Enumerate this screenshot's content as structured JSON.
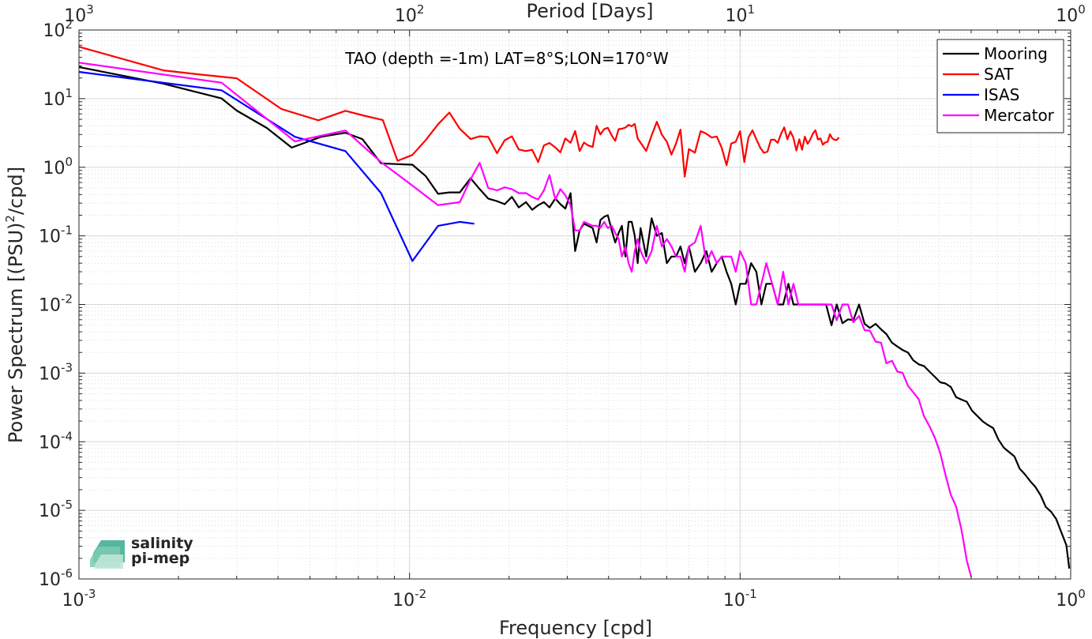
{
  "chart_data": {
    "type": "line",
    "title": "TAO (depth =-1m) LAT=8°S;LON=170°W",
    "xlabel": "Frequency [cpd]",
    "ylabel_main": "Power Spectrum [(PSU)",
    "ylabel_sup": "2",
    "ylabel_tail": "/cpd]",
    "top_xlabel": "Period [Days]",
    "xscale": "log",
    "yscale": "log",
    "xlim": [
      0.001,
      1
    ],
    "ylim": [
      1e-06,
      100
    ],
    "grid": true,
    "legend_position": "top-right",
    "x_ticks": [
      {
        "value": 0.001,
        "base": "10",
        "exp": "-3"
      },
      {
        "value": 0.01,
        "base": "10",
        "exp": "-2"
      },
      {
        "value": 0.1,
        "base": "10",
        "exp": "-1"
      },
      {
        "value": 1,
        "base": "10",
        "exp": "0"
      }
    ],
    "top_ticks": [
      {
        "value": 1000,
        "base": "10",
        "exp": "3"
      },
      {
        "value": 100,
        "base": "10",
        "exp": "2"
      },
      {
        "value": 10,
        "base": "10",
        "exp": "1"
      },
      {
        "value": 1,
        "base": "10",
        "exp": "0"
      }
    ],
    "y_ticks": [
      {
        "value": 1e-06,
        "base": "10",
        "exp": "-6"
      },
      {
        "value": 1e-05,
        "base": "10",
        "exp": "-5"
      },
      {
        "value": 0.0001,
        "base": "10",
        "exp": "-4"
      },
      {
        "value": 0.001,
        "base": "10",
        "exp": "-3"
      },
      {
        "value": 0.01,
        "base": "10",
        "exp": "-2"
      },
      {
        "value": 0.1,
        "base": "10",
        "exp": "-1"
      },
      {
        "value": 1,
        "base": "10",
        "exp": "0"
      },
      {
        "value": 10,
        "base": "10",
        "exp": "1"
      },
      {
        "value": 100,
        "base": "10",
        "exp": "2"
      }
    ],
    "series": [
      {
        "name": "Mooring",
        "color": "#000000",
        "x": [
          0.001,
          0.0018,
          0.0027,
          0.003,
          0.0037,
          0.0044,
          0.0054,
          0.0064,
          0.0072,
          0.0082,
          0.0092,
          0.0102,
          0.0112,
          0.0122,
          0.0132,
          0.0142,
          0.0153,
          0.0163,
          0.0173,
          0.0184,
          0.0194,
          0.0204,
          0.0214,
          0.0225,
          0.0235,
          0.0245,
          0.0255,
          0.0265,
          0.0276,
          0.0286,
          0.0296,
          0.0307,
          0.0317,
          0.0327,
          0.0337,
          0.0347,
          0.0358,
          0.0368,
          0.0378,
          0.0388,
          0.0398,
          0.0409,
          0.0419,
          0.0429,
          0.0439,
          0.045,
          0.046,
          0.047,
          0.048,
          0.049,
          0.05,
          0.052,
          0.054,
          0.056,
          0.058,
          0.06,
          0.062,
          0.064,
          0.066,
          0.068,
          0.07,
          0.073,
          0.076,
          0.079,
          0.082,
          0.085,
          0.088,
          0.091,
          0.094,
          0.097,
          0.1,
          0.104,
          0.108,
          0.112,
          0.116,
          0.12,
          0.125,
          0.13,
          0.135,
          0.14,
          0.145,
          0.15,
          0.156,
          0.162,
          0.168,
          0.175,
          0.182,
          0.189,
          0.196,
          0.204,
          0.212,
          0.22,
          0.229,
          0.238,
          0.247,
          0.257,
          0.267,
          0.277,
          0.288,
          0.299,
          0.31,
          0.322,
          0.334,
          0.347,
          0.36,
          0.374,
          0.388,
          0.403,
          0.418,
          0.434,
          0.45,
          0.467,
          0.485,
          0.503,
          0.522,
          0.542,
          0.562,
          0.583,
          0.605,
          0.628,
          0.652,
          0.676,
          0.701,
          0.727,
          0.754,
          0.782,
          0.811,
          0.841,
          0.872,
          0.904,
          0.937,
          0.97,
          0.99
        ],
        "y": [
          28.88,
          16.53,
          10.08,
          6.69,
          3.74,
          1.93,
          2.78,
          3.18,
          2.57,
          1.14,
          1.11,
          1.09,
          0.74,
          0.41,
          0.43,
          0.43,
          0.69,
          0.48,
          0.35,
          0.32,
          0.29,
          0.37,
          0.26,
          0.31,
          0.24,
          0.28,
          0.31,
          0.26,
          0.35,
          0.29,
          0.25,
          0.42,
          0.06,
          0.12,
          0.15,
          0.14,
          0.13,
          0.08,
          0.17,
          0.19,
          0.2,
          0.12,
          0.08,
          0.11,
          0.14,
          0.05,
          0.16,
          0.16,
          0.1,
          0.04,
          0.13,
          0.05,
          0.18,
          0.1,
          0.11,
          0.04,
          0.05,
          0.05,
          0.07,
          0.04,
          0.07,
          0.03,
          0.04,
          0.06,
          0.03,
          0.04,
          0.05,
          0.03,
          0.02,
          0.01,
          0.02,
          0.02,
          0.04,
          0.03,
          0.01,
          0.02,
          0.02,
          0.01,
          0.01,
          0.02,
          0.01,
          0.01,
          0.01,
          0.01,
          0.01,
          0.01,
          0.01,
          0.00497,
          0.01,
          0.00533,
          0.00607,
          0.00591,
          0.01,
          0.00523,
          0.00456,
          0.00522,
          0.00434,
          0.0037,
          0.00277,
          0.00244,
          0.00217,
          0.00199,
          0.00154,
          0.00134,
          0.00127,
          0.00105,
          0.000885,
          0.000734,
          0.000707,
          0.000629,
          0.000447,
          0.000411,
          0.000383,
          0.000283,
          0.000237,
          0.000198,
          0.000175,
          0.000158,
          0.000107,
          8.16e-05,
          7.03e-05,
          6.1e-05,
          4.05e-05,
          3.35e-05,
          2.67e-05,
          2.19e-05,
          1.66e-05,
          1.12e-05,
          9.57e-06,
          7.5e-06,
          4.78e-06,
          3.12e-06,
          1.42e-06
        ]
      },
      {
        "name": "SAT",
        "color": "#ff0000",
        "x": [
          0.001,
          0.0018,
          0.0023,
          0.003,
          0.0041,
          0.0053,
          0.0064,
          0.0073,
          0.0083,
          0.0092,
          0.0102,
          0.0112,
          0.0122,
          0.0132,
          0.0142,
          0.0153,
          0.0163,
          0.0173,
          0.0184,
          0.0194,
          0.0204,
          0.0214,
          0.0225,
          0.0235,
          0.0245,
          0.0255,
          0.0265,
          0.0276,
          0.0286,
          0.0296,
          0.0307,
          0.0317,
          0.0327,
          0.0337,
          0.0347,
          0.0358,
          0.0368,
          0.0378,
          0.0388,
          0.0398,
          0.0409,
          0.0419,
          0.0429,
          0.0439,
          0.045,
          0.046,
          0.047,
          0.048,
          0.049,
          0.05,
          0.052,
          0.054,
          0.056,
          0.058,
          0.06,
          0.062,
          0.064,
          0.066,
          0.068,
          0.07,
          0.073,
          0.076,
          0.079,
          0.082,
          0.085,
          0.088,
          0.091,
          0.094,
          0.097,
          0.1,
          0.103,
          0.106,
          0.109,
          0.112,
          0.115,
          0.118,
          0.121,
          0.124,
          0.127,
          0.13,
          0.133,
          0.136,
          0.139,
          0.142,
          0.145,
          0.148,
          0.151,
          0.154,
          0.157,
          0.16,
          0.163,
          0.166,
          0.169,
          0.172,
          0.175,
          0.178,
          0.181,
          0.184,
          0.187,
          0.19,
          0.193,
          0.196,
          0.199
        ],
        "y": [
          57.05,
          25.8,
          22.63,
          19.8,
          7.05,
          4.84,
          6.65,
          5.64,
          4.89,
          1.24,
          1.51,
          2.5,
          4.23,
          6.27,
          3.63,
          2.57,
          2.82,
          2.77,
          1.6,
          2.47,
          2.82,
          1.82,
          1.72,
          1.8,
          1.19,
          2.08,
          2.26,
          1.94,
          1.65,
          2.63,
          2.27,
          3.37,
          1.72,
          2.29,
          2.08,
          1.98,
          4.03,
          3.0,
          3.6,
          3.76,
          2.9,
          2.43,
          3.59,
          3.64,
          3.79,
          4.15,
          3.96,
          4.28,
          2.62,
          2.27,
          1.73,
          2.91,
          4.6,
          2.98,
          2.36,
          1.53,
          2.22,
          3.54,
          0.73,
          1.84,
          1.63,
          3.36,
          3.08,
          2.71,
          2.81,
          1.91,
          1.07,
          2.21,
          2.35,
          3.35,
          1.19,
          2.72,
          3.46,
          2.55,
          1.94,
          1.62,
          1.69,
          2.52,
          2.52,
          2.27,
          3.07,
          3.81,
          2.56,
          3.33,
          2.67,
          1.75,
          2.55,
          1.8,
          2.79,
          2.2,
          2.53,
          3.09,
          3.46,
          2.54,
          2.63,
          2.13,
          2.3,
          2.36,
          3.02,
          2.64,
          2.52,
          2.49,
          2.72
        ]
      },
      {
        "name": "ISAS",
        "color": "#0000ff",
        "x": [
          0.001,
          0.0027,
          0.0045,
          0.0064,
          0.0082,
          0.0102,
          0.0122,
          0.0142,
          0.0157
        ],
        "y": [
          24.56,
          13.22,
          2.78,
          1.72,
          0.42,
          0.043,
          0.14,
          0.16,
          0.15
        ]
      },
      {
        "name": "Mercator",
        "color": "#ff00ff",
        "x": [
          0.001,
          0.0027,
          0.0045,
          0.0064,
          0.0082,
          0.0102,
          0.0122,
          0.0142,
          0.0153,
          0.0163,
          0.0173,
          0.0184,
          0.0194,
          0.0204,
          0.0214,
          0.0225,
          0.0235,
          0.0245,
          0.0255,
          0.0265,
          0.0276,
          0.0286,
          0.0296,
          0.0307,
          0.0317,
          0.0327,
          0.0337,
          0.0347,
          0.0358,
          0.0368,
          0.0378,
          0.0388,
          0.0398,
          0.0409,
          0.0419,
          0.0429,
          0.0439,
          0.045,
          0.046,
          0.047,
          0.048,
          0.049,
          0.05,
          0.052,
          0.054,
          0.056,
          0.058,
          0.06,
          0.062,
          0.064,
          0.066,
          0.068,
          0.07,
          0.073,
          0.076,
          0.079,
          0.082,
          0.085,
          0.088,
          0.091,
          0.094,
          0.097,
          0.1,
          0.104,
          0.108,
          0.112,
          0.116,
          0.12,
          0.125,
          0.13,
          0.135,
          0.14,
          0.145,
          0.15,
          0.156,
          0.162,
          0.168,
          0.175,
          0.182,
          0.189,
          0.196,
          0.204,
          0.212,
          0.22,
          0.229,
          0.238,
          0.247,
          0.257,
          0.267,
          0.277,
          0.288,
          0.299,
          0.31,
          0.322,
          0.334,
          0.347,
          0.36,
          0.374,
          0.388,
          0.403,
          0.418,
          0.434,
          0.45,
          0.467,
          0.485,
          0.5
        ],
        "y": [
          33.44,
          17.07,
          2.38,
          3.43,
          1.19,
          0.54,
          0.28,
          0.31,
          0.67,
          1.16,
          0.5,
          0.46,
          0.51,
          0.48,
          0.42,
          0.42,
          0.37,
          0.34,
          0.46,
          0.77,
          0.34,
          0.48,
          0.39,
          0.28,
          0.12,
          0.12,
          0.16,
          0.15,
          0.14,
          0.14,
          0.13,
          0.16,
          0.13,
          0.14,
          0.11,
          0.09,
          0.05,
          0.07,
          0.04,
          0.03,
          0.06,
          0.09,
          0.06,
          0.04,
          0.06,
          0.14,
          0.07,
          0.09,
          0.07,
          0.05,
          0.05,
          0.03,
          0.07,
          0.08,
          0.14,
          0.04,
          0.06,
          0.04,
          0.05,
          0.05,
          0.05,
          0.03,
          0.06,
          0.04,
          0.01,
          0.01,
          0.02,
          0.04,
          0.02,
          0.01,
          0.03,
          0.01,
          0.02,
          0.01,
          0.01,
          0.01,
          0.01,
          0.01,
          0.01,
          0.01,
          0.00589,
          0.01,
          0.01,
          0.00551,
          0.00681,
          0.00423,
          0.00416,
          0.00288,
          0.00276,
          0.00139,
          0.00151,
          0.00105,
          0.00101,
          0.000651,
          0.000526,
          0.000415,
          0.000236,
          0.000168,
          0.000115,
          6.83e-05,
          3.3e-05,
          1.68e-05,
          1.15e-05,
          5.29e-06,
          1.86e-06,
          1.07e-06
        ]
      }
    ]
  },
  "logo": {
    "line1": "salinity",
    "line2": "pi-mep",
    "color": "#2a9d8f"
  }
}
